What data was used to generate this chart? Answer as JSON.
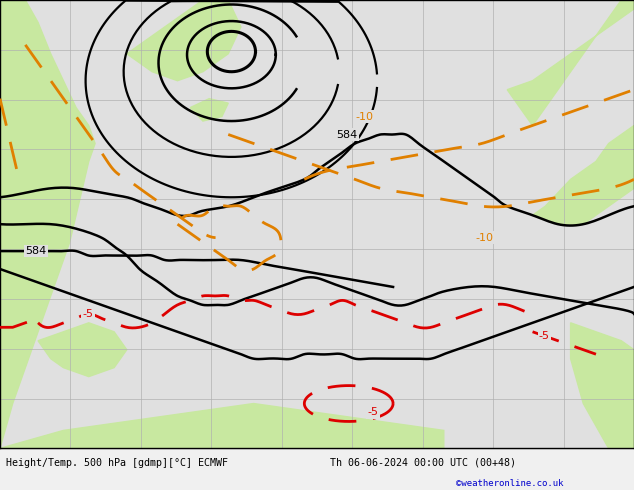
{
  "title_left": "Height/Temp. 500 hPa [gdmp][°C] ECMWF",
  "title_right": "Th 06-06-2024 00:00 UTC (00+48)",
  "credit": "©weatheronline.co.uk",
  "background_color": "#e0e0e0",
  "land_color": "#c8e8a0",
  "sea_color": "#e0e0e0",
  "grid_color": "#b0b0b0",
  "contour_height_color": "#000000",
  "contour_temp_warm_color": "#e08000",
  "contour_temp_cold_color": "#dd0000",
  "bottom_bar_color": "#f0f0f0",
  "figsize": [
    6.34,
    4.9
  ],
  "dpi": 100
}
